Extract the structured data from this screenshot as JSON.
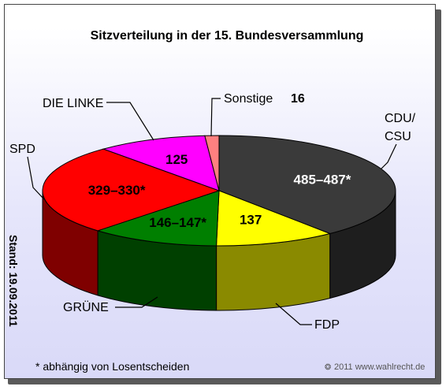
{
  "chart_data": {
    "type": "pie",
    "title": "Sitzverteilung in der 15. Bundesversammlung",
    "slices": [
      {
        "label": "CDU/\nCSU",
        "value_label": "485–487*",
        "value": 486,
        "color": "#3a3a3a",
        "side": "#1e1e1e"
      },
      {
        "label": "FDP",
        "value_label": "137",
        "value": 137,
        "color": "#ffff00",
        "side": "#8a8a00"
      },
      {
        "label": "GRÜNE",
        "value_label": "146–147*",
        "value": 146.5,
        "color": "#007f00",
        "side": "#004000"
      },
      {
        "label": "SPD",
        "value_label": "329–330*",
        "value": 329.5,
        "color": "#ff0000",
        "side": "#7f0000"
      },
      {
        "label": "DIE LINKE",
        "value_label": "125",
        "value": 125,
        "color": "#ff00ff",
        "side": "#800080"
      },
      {
        "label": "Sonstige",
        "value_label": "16",
        "value": 16,
        "color": "#ff8080",
        "side": "#b35a5a"
      }
    ]
  },
  "stand": "Stand: 19.09.2011",
  "footnote": "* abhängig von Losentscheiden",
  "credit": "2011 www.wahlrecht.de",
  "copyright_symbol": "❂"
}
